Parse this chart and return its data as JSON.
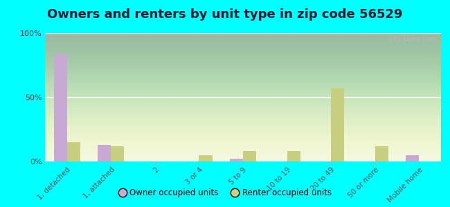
{
  "title": "Owners and renters by unit type in zip code 56529",
  "categories": [
    "1, detached",
    "1, attached",
    "2",
    "3 or 4",
    "5 to 9",
    "10 to 19",
    "20 to 49",
    "50 or more",
    "Mobile home"
  ],
  "owner_values": [
    84,
    13,
    0,
    0,
    2,
    0,
    0,
    0,
    5
  ],
  "renter_values": [
    15,
    12,
    0,
    5,
    8,
    8,
    57,
    12,
    0
  ],
  "owner_color": "#c9a8d4",
  "renter_color": "#c8cf7e",
  "background_color": "#00ffff",
  "title_fontsize": 13,
  "watermark": "City-Data.com",
  "legend_owner": "Owner occupied units",
  "legend_renter": "Renter occupied units",
  "ylim": [
    0,
    100
  ],
  "yticks": [
    0,
    50,
    100
  ],
  "ytick_labels": [
    "0%",
    "50%",
    "100%"
  ]
}
